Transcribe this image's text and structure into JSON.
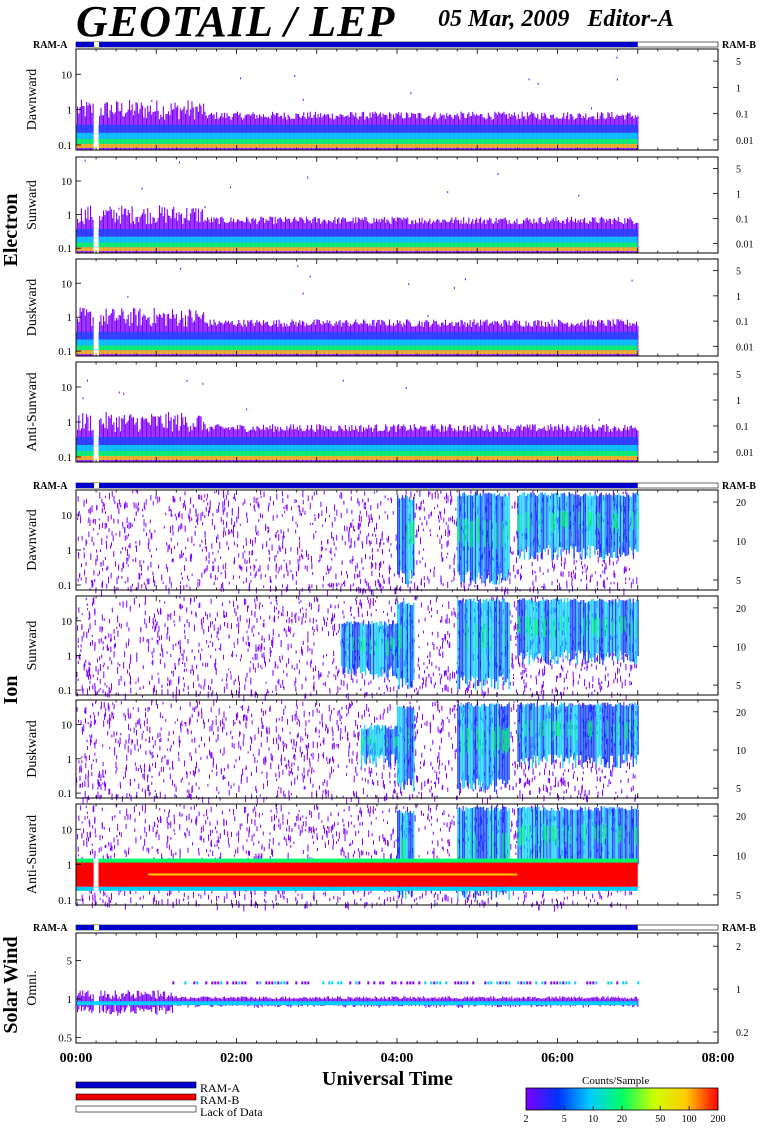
{
  "title": "GEOTAIL / LEP",
  "date": "05 Mar, 2009",
  "editor": "Editor-A",
  "chart_data": {
    "type": "heatmap",
    "xlabel": "Universal Time",
    "x_ticks": [
      "00:00",
      "02:00",
      "04:00",
      "06:00",
      "08:00"
    ],
    "x_range_hours": [
      0,
      8
    ],
    "data_end_hours": 7.0,
    "groups": [
      {
        "name": "Electron",
        "ram_a_label": "RAM-A",
        "ram_b_label": "RAM-B",
        "panels": [
          {
            "name": "Dawnward",
            "left_ticks": [
              "10",
              "1",
              "0.1"
            ],
            "right_ticks": [
              "5",
              "1",
              "0.1",
              "0.01"
            ]
          },
          {
            "name": "Sunward",
            "left_ticks": [
              "10",
              "1",
              "0.1"
            ],
            "right_ticks": [
              "5",
              "1",
              "0.1",
              "0.01"
            ]
          },
          {
            "name": "Duskward",
            "left_ticks": [
              "10",
              "1",
              "0.1"
            ],
            "right_ticks": [
              "5",
              "1",
              "0.1",
              "0.01"
            ]
          },
          {
            "name": "Anti-Sunward",
            "left_ticks": [
              "10",
              "1",
              "0.1"
            ],
            "right_ticks": [
              "5",
              "1",
              "0.1",
              "0.01"
            ]
          }
        ]
      },
      {
        "name": "Ion",
        "ram_a_label": "RAM-A",
        "ram_b_label": "RAM-B",
        "panels": [
          {
            "name": "Dawnward",
            "left_ticks": [
              "10",
              "1",
              "0.1"
            ],
            "right_ticks": [
              "20",
              "10",
              "5"
            ]
          },
          {
            "name": "Sunward",
            "left_ticks": [
              "10",
              "1",
              "0.1"
            ],
            "right_ticks": [
              "20",
              "10",
              "5"
            ]
          },
          {
            "name": "Duskward",
            "left_ticks": [
              "10",
              "1",
              "0.1"
            ],
            "right_ticks": [
              "20",
              "10",
              "5"
            ]
          },
          {
            "name": "Anti-Sunward",
            "left_ticks": [
              "10",
              "1",
              "0.1"
            ],
            "right_ticks": [
              "20",
              "10",
              "5"
            ]
          }
        ]
      },
      {
        "name": "Solar Wind",
        "ram_a_label": "RAM-A",
        "ram_b_label": "RAM-B",
        "panels": [
          {
            "name": "Omni.",
            "left_ticks": [
              "5",
              "1",
              "0.5"
            ],
            "right_ticks": [
              "2",
              "1",
              "0.2"
            ]
          }
        ]
      }
    ],
    "legend": [
      {
        "label": "RAM-A",
        "color": "#0000cc"
      },
      {
        "label": "RAM-B",
        "color": "#ee0000"
      },
      {
        "label": "Lack of Data",
        "color": "#ffffff"
      }
    ],
    "colorbar": {
      "title": "Counts/Sample",
      "ticks": [
        "2",
        "5",
        "10",
        "20",
        "50",
        "100",
        "200"
      ],
      "colors": [
        "#7f00ff",
        "#0033ff",
        "#00ccff",
        "#00ff66",
        "#ccff00",
        "#ffcc00",
        "#ff0000"
      ]
    }
  }
}
